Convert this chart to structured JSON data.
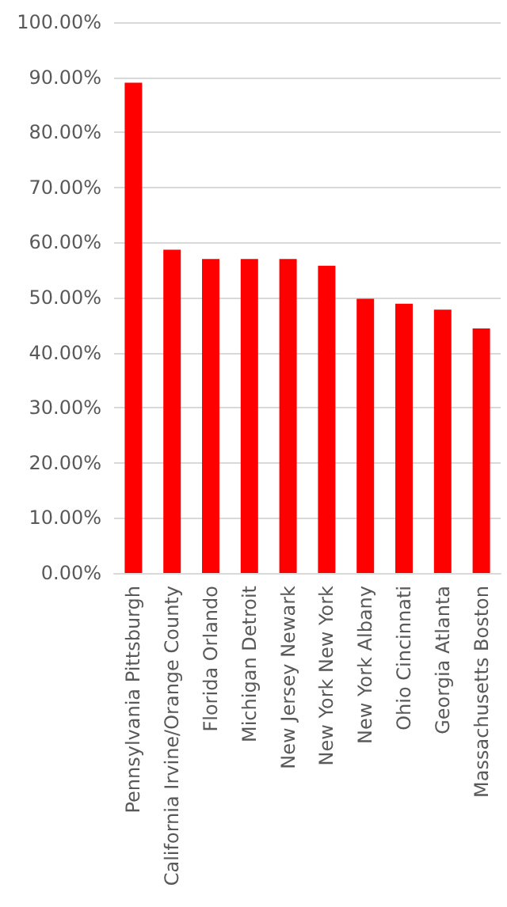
{
  "chart_data": {
    "type": "bar",
    "categories": [
      "Pennsylvania Pittsburgh",
      "California Irvine/Orange County",
      "Florida Orlando",
      "Michigan Detroit",
      "New Jersey Newark",
      "New York New York",
      "New York Albany",
      "Ohio Cincinnati",
      "Georgia Atlanta",
      "Massachusetts Boston"
    ],
    "values": [
      89.0,
      58.7,
      57.0,
      57.0,
      57.0,
      55.8,
      49.8,
      48.9,
      47.8,
      44.4
    ],
    "color": "#ff0000",
    "ylim": [
      0,
      100
    ],
    "yticks": [
      {
        "value": 0,
        "label": "0.00%"
      },
      {
        "value": 10,
        "label": "10.00%"
      },
      {
        "value": 20,
        "label": "20.00%"
      },
      {
        "value": 30,
        "label": "30.00%"
      },
      {
        "value": 40,
        "label": "40.00%"
      },
      {
        "value": 50,
        "label": "50.00%"
      },
      {
        "value": 60,
        "label": "60.00%"
      },
      {
        "value": 70,
        "label": "70.00%"
      },
      {
        "value": 80,
        "label": "80.00%"
      },
      {
        "value": 90,
        "label": "90.00%"
      },
      {
        "value": 100,
        "label": "100.00%"
      }
    ],
    "grid": "y"
  }
}
